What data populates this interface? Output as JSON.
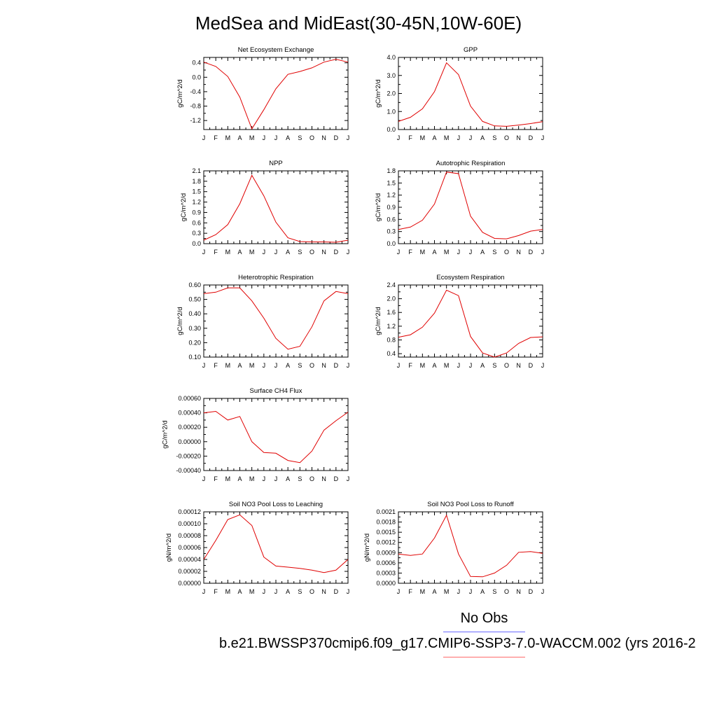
{
  "title": "MedSea and MidEast(30-45N,10W-60E)",
  "colors": {
    "model_line": "#e00000",
    "obs_line": "#6b6bff",
    "model_legend_line": "#ff6b6b"
  },
  "legend": {
    "obs_label": "No Obs",
    "model_label": "b.e21.BWSSP370cmip6.f09_g17.CMIP6-SSP3-7.0-WACCM.002 (yrs 2016-2"
  },
  "chart_data": [
    {
      "type": "line",
      "title": "Net Ecosystem Exchange",
      "ylabel": "gC/m^2/d",
      "categories": [
        "J",
        "F",
        "M",
        "A",
        "M",
        "J",
        "J",
        "A",
        "S",
        "O",
        "N",
        "D",
        "J"
      ],
      "ylim": [
        -1.45,
        0.55
      ],
      "yticks": [
        0.4,
        0.0,
        -0.4,
        -0.8,
        -1.2
      ],
      "ytick_labels": [
        "0.4",
        "0.0",
        "-0.4",
        "-0.8",
        "-1.2"
      ],
      "series": [
        {
          "values": [
            0.42,
            0.3,
            0.02,
            -0.55,
            -1.43,
            -0.9,
            -0.32,
            0.08,
            0.16,
            0.26,
            0.42,
            0.5,
            0.42
          ]
        }
      ]
    },
    {
      "type": "line",
      "title": "GPP",
      "ylabel": "gC/m^2/d",
      "categories": [
        "J",
        "F",
        "M",
        "A",
        "M",
        "J",
        "J",
        "A",
        "S",
        "O",
        "N",
        "D",
        "J"
      ],
      "ylim": [
        0.0,
        4.0
      ],
      "yticks": [
        0.0,
        1.0,
        2.0,
        3.0,
        4.0
      ],
      "ytick_labels": [
        "0.0",
        "1.0",
        "2.0",
        "3.0",
        "4.0"
      ],
      "series": [
        {
          "values": [
            0.45,
            0.68,
            1.15,
            2.1,
            3.7,
            3.05,
            1.3,
            0.45,
            0.2,
            0.18,
            0.25,
            0.33,
            0.44
          ]
        }
      ]
    },
    {
      "type": "line",
      "title": "NPP",
      "ylabel": "gC/m^2/d",
      "categories": [
        "J",
        "F",
        "M",
        "A",
        "M",
        "J",
        "J",
        "A",
        "S",
        "O",
        "N",
        "D",
        "J"
      ],
      "ylim": [
        0.0,
        2.1
      ],
      "yticks": [
        0.0,
        0.3,
        0.6,
        0.9,
        1.2,
        1.5,
        1.8,
        2.1
      ],
      "ytick_labels": [
        "0.0",
        "0.3",
        "0.6",
        "0.9",
        "1.2",
        "1.5",
        "1.8",
        "2.1"
      ],
      "series": [
        {
          "values": [
            0.1,
            0.26,
            0.55,
            1.15,
            1.97,
            1.38,
            0.62,
            0.17,
            0.06,
            0.05,
            0.05,
            0.04,
            0.1
          ]
        }
      ]
    },
    {
      "type": "line",
      "title": "Autotrophic Respiration",
      "ylabel": "gC/m^2/d",
      "categories": [
        "J",
        "F",
        "M",
        "A",
        "M",
        "J",
        "J",
        "A",
        "S",
        "O",
        "N",
        "D",
        "J"
      ],
      "ylim": [
        0.0,
        1.8
      ],
      "yticks": [
        0.0,
        0.3,
        0.6,
        0.9,
        1.2,
        1.5,
        1.8
      ],
      "ytick_labels": [
        "0.0",
        "0.3",
        "0.6",
        "0.9",
        "1.2",
        "1.5",
        "1.8"
      ],
      "series": [
        {
          "values": [
            0.35,
            0.41,
            0.58,
            0.98,
            1.77,
            1.73,
            0.68,
            0.28,
            0.13,
            0.12,
            0.2,
            0.31,
            0.35
          ]
        }
      ]
    },
    {
      "type": "line",
      "title": "Heterotrophic Respiration",
      "ylabel": "gC/m^2/d",
      "categories": [
        "J",
        "F",
        "M",
        "A",
        "M",
        "J",
        "J",
        "A",
        "S",
        "O",
        "N",
        "D",
        "J"
      ],
      "ylim": [
        0.1,
        0.6
      ],
      "yticks": [
        0.1,
        0.2,
        0.3,
        0.4,
        0.5,
        0.6
      ],
      "ytick_labels": [
        "0.10",
        "0.20",
        "0.30",
        "0.40",
        "0.50",
        "0.60"
      ],
      "series": [
        {
          "values": [
            0.54,
            0.55,
            0.58,
            0.58,
            0.49,
            0.37,
            0.23,
            0.155,
            0.175,
            0.31,
            0.49,
            0.555,
            0.54
          ]
        }
      ]
    },
    {
      "type": "line",
      "title": "Ecosystem Respiration",
      "ylabel": "gC/m^2/d",
      "categories": [
        "J",
        "F",
        "M",
        "A",
        "M",
        "J",
        "J",
        "A",
        "S",
        "O",
        "N",
        "D",
        "J"
      ],
      "ylim": [
        0.3,
        2.4
      ],
      "yticks": [
        0.4,
        0.8,
        1.2,
        1.6,
        2.0,
        2.4
      ],
      "ytick_labels": [
        "0.4",
        "0.8",
        "1.2",
        "1.6",
        "2.0",
        "2.4"
      ],
      "series": [
        {
          "values": [
            0.88,
            0.95,
            1.17,
            1.58,
            2.25,
            2.09,
            0.9,
            0.42,
            0.3,
            0.42,
            0.7,
            0.87,
            0.89
          ]
        }
      ]
    },
    {
      "type": "line",
      "title": "Surface CH4 Flux",
      "ylabel": "gC/m^2/d",
      "categories": [
        "J",
        "F",
        "M",
        "A",
        "M",
        "J",
        "J",
        "A",
        "S",
        "O",
        "N",
        "D",
        "J"
      ],
      "ylim": [
        -0.0004,
        0.0006
      ],
      "yticks": [
        -0.0004,
        -0.0002,
        0.0,
        0.0002,
        0.0004,
        0.0006
      ],
      "ytick_labels": [
        "-0.00040",
        "-0.00020",
        "0.00000",
        "0.00020",
        "0.00040",
        "0.00060"
      ],
      "series": [
        {
          "values": [
            0.0004,
            0.00042,
            0.0003,
            0.00035,
            0.0,
            -0.00015,
            -0.00016,
            -0.00026,
            -0.00029,
            -0.00013,
            0.00016,
            0.00029,
            0.00041
          ]
        }
      ]
    },
    {
      "type": "line",
      "title": "Soil NO3 Pool Loss to Leaching",
      "ylabel": "gN/m^2/d",
      "categories": [
        "J",
        "F",
        "M",
        "A",
        "M",
        "J",
        "J",
        "A",
        "S",
        "O",
        "N",
        "D",
        "J"
      ],
      "ylim": [
        0.0,
        0.00012
      ],
      "yticks": [
        0.0,
        2e-05,
        4e-05,
        6e-05,
        8e-05,
        0.0001,
        0.00012
      ],
      "ytick_labels": [
        "0.00000",
        "0.00002",
        "0.00004",
        "0.00006",
        "0.00008",
        "0.00010",
        "0.00012"
      ],
      "series": [
        {
          "values": [
            4e-05,
            7.2e-05,
            0.000107,
            0.000115,
            9.7e-05,
            4.4e-05,
            2.9e-05,
            2.7e-05,
            2.5e-05,
            2.2e-05,
            1.8e-05,
            2.2e-05,
            4e-05
          ]
        }
      ]
    },
    {
      "type": "line",
      "title": "Soil NO3 Pool Loss to Runoff",
      "ylabel": "gN/m^2/d",
      "categories": [
        "J",
        "F",
        "M",
        "A",
        "M",
        "J",
        "J",
        "A",
        "S",
        "O",
        "N",
        "D",
        "J"
      ],
      "ylim": [
        0.0,
        0.0021
      ],
      "yticks": [
        0.0,
        0.0003,
        0.0006,
        0.0009,
        0.0012,
        0.0015,
        0.0018,
        0.0021
      ],
      "ytick_labels": [
        "0.0000",
        "0.0003",
        "0.0006",
        "0.0009",
        "0.0012",
        "0.0015",
        "0.0018",
        "0.0021"
      ],
      "series": [
        {
          "values": [
            0.00086,
            0.00082,
            0.00086,
            0.00133,
            0.002,
            0.00086,
            0.0002,
            0.00019,
            0.0003,
            0.00053,
            0.00091,
            0.00093,
            0.00088
          ]
        }
      ]
    }
  ]
}
